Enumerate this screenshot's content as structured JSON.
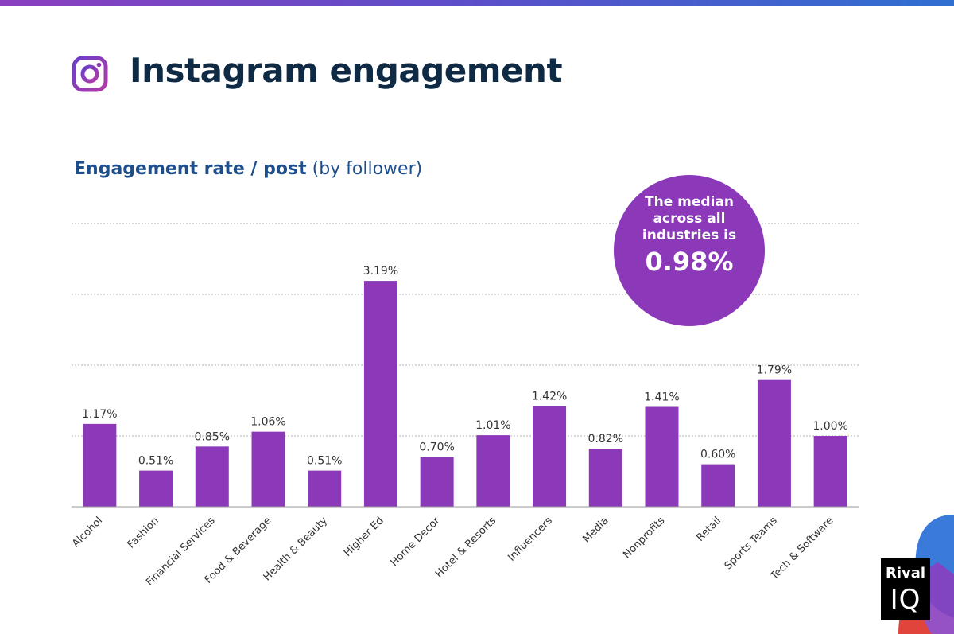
{
  "header": {
    "title": "Instagram engagement",
    "icon": "instagram-icon"
  },
  "subtitle": {
    "bold": "Engagement rate / post",
    "light": "(by follower)"
  },
  "callout": {
    "text_lines": [
      "The median",
      "across all",
      "industries is"
    ],
    "value": "0.98%"
  },
  "logo": {
    "line1": "Rival",
    "line2": "IQ"
  },
  "colors": {
    "bar": "#8b38b9",
    "title": "#0f2a44",
    "subtitle": "#1f4e8c",
    "callout": "#8b38b9"
  },
  "chart_data": {
    "type": "bar",
    "title": "Engagement rate / post (by follower)",
    "categories": [
      "Alcohol",
      "Fashion",
      "Financial Services",
      "Food & Beverage",
      "Health & Beauty",
      "Higher Ed",
      "Home Decor",
      "Hotel & Resorts",
      "Influencers",
      "Media",
      "Nonprofits",
      "Retail",
      "Sports Teams",
      "Tech & Software"
    ],
    "values": [
      1.17,
      0.51,
      0.85,
      1.06,
      0.51,
      3.19,
      0.7,
      1.01,
      1.42,
      0.82,
      1.41,
      0.6,
      1.79,
      1.0
    ],
    "value_labels": [
      "1.17%",
      "0.51%",
      "0.85%",
      "1.06%",
      "0.51%",
      "3.19%",
      "0.70%",
      "1.01%",
      "1.42%",
      "0.82%",
      "1.41%",
      "0.60%",
      "1.79%",
      "1.00%"
    ],
    "ylim": [
      0,
      4
    ],
    "gridlines": [
      1,
      2,
      3,
      4
    ],
    "grid": true,
    "xlabel": "",
    "ylabel": ""
  }
}
